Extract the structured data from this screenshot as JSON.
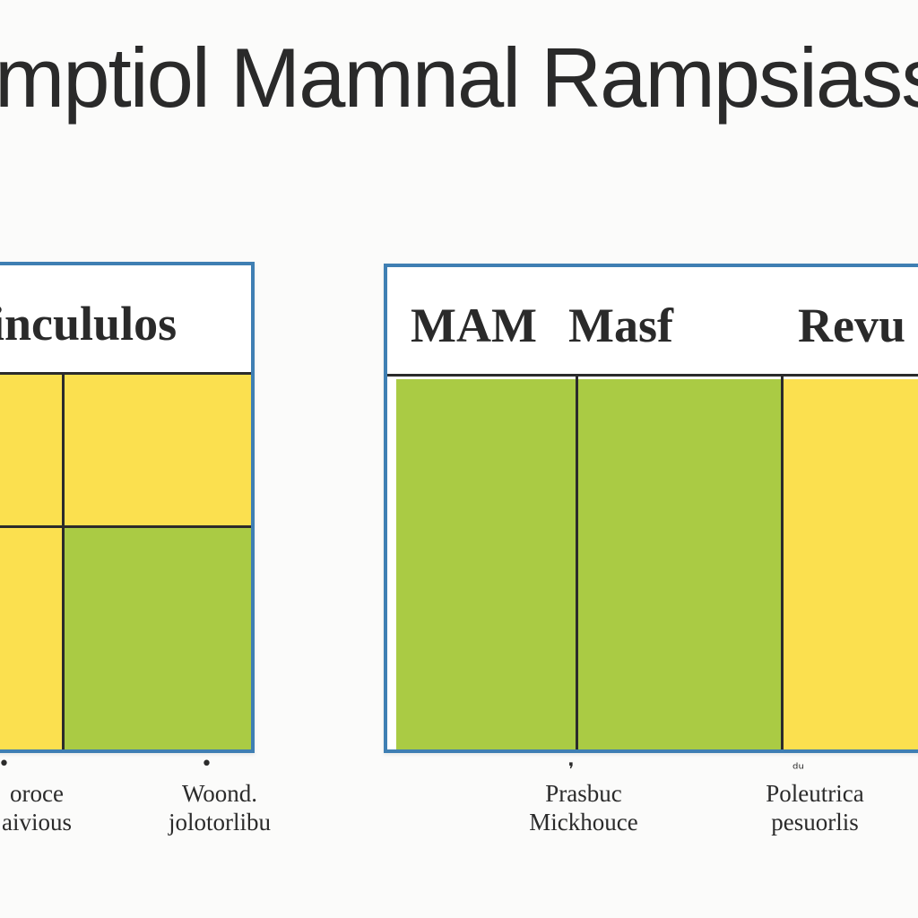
{
  "title": "mptiol Mamnal Rampsiass",
  "panels": {
    "left": {
      "header": "incululos",
      "cells": {
        "top_left": "yellow",
        "top_right": "yellow",
        "bottom_left": "yellow",
        "bottom_right": "green"
      }
    },
    "right": {
      "headers": [
        "MAM",
        "Masf",
        "Revu"
      ],
      "columns": [
        "green",
        "green",
        "yellow"
      ]
    }
  },
  "captions": [
    {
      "line1": "oroce",
      "line2": "aivious"
    },
    {
      "line1": "Woond.",
      "line2": "jolotorlibu"
    },
    {
      "line1": "Prasbuc",
      "line2": "Mickhouce"
    },
    {
      "line1": "Poleutrica",
      "line2": "pesuorlis"
    }
  ],
  "markers": [
    "•",
    "•",
    "❜",
    "ᵈᵘ"
  ],
  "colors": {
    "border": "#3f7fb3",
    "yellow": "#fbe04f",
    "green": "#aacb44",
    "ink": "#2b2b2b",
    "background": "#fbfbfa"
  }
}
